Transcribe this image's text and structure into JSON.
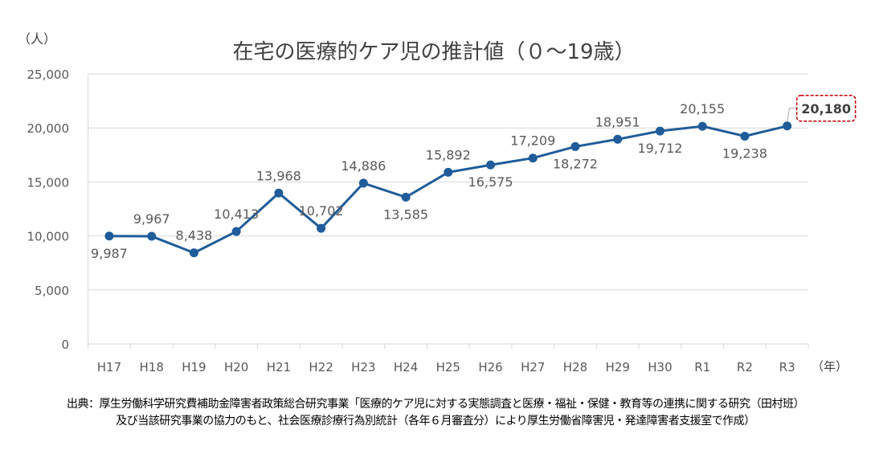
{
  "chart_data": {
    "type": "line",
    "title": "在宅の医療的ケア児の推計値（０～19歳）",
    "ylabel": "（人）",
    "xlabel": "（年）",
    "categories": [
      "H17",
      "H18",
      "H19",
      "H20",
      "H21",
      "H22",
      "H23",
      "H24",
      "H25",
      "H26",
      "H27",
      "H28",
      "H29",
      "H30",
      "R1",
      "R2",
      "R3"
    ],
    "values": [
      9987,
      9967,
      8438,
      10413,
      13968,
      10702,
      14886,
      13585,
      15892,
      16575,
      17209,
      18272,
      18951,
      19712,
      20155,
      19238,
      20180
    ],
    "value_labels": [
      "9,987",
      "9,967",
      "8,438",
      "10,413",
      "13,968",
      "10,702",
      "14,886",
      "13,585",
      "15,892",
      "16,575",
      "17,209",
      "18,272",
      "18,951",
      "19,712",
      "20,155",
      "19,238",
      "20,180"
    ],
    "ylim": [
      0,
      25000
    ],
    "yticks": [
      0,
      5000,
      10000,
      15000,
      20000,
      25000
    ],
    "ytick_labels": [
      "0",
      "5,000",
      "10,000",
      "15,000",
      "20,000",
      "25,000"
    ],
    "grid": "horizontal",
    "highlight": "R3",
    "colors": {
      "line": "#1f5c99",
      "highlight_border": "#c00000",
      "grid": "#d9d9d9"
    }
  },
  "source_note": {
    "line1": "出典：厚生労働科学研究費補助金障害者政策総合研究事業「医療的ケア児に対する実態調査と医療・福祉・保健・教育等の連携に関する研究（田村班）",
    "line2": "及び当該研究事業の協力のもと、社会医療診療行為別統計（各年６月審査分）により厚生労働省障害児・発達障害者支援室で作成）"
  }
}
